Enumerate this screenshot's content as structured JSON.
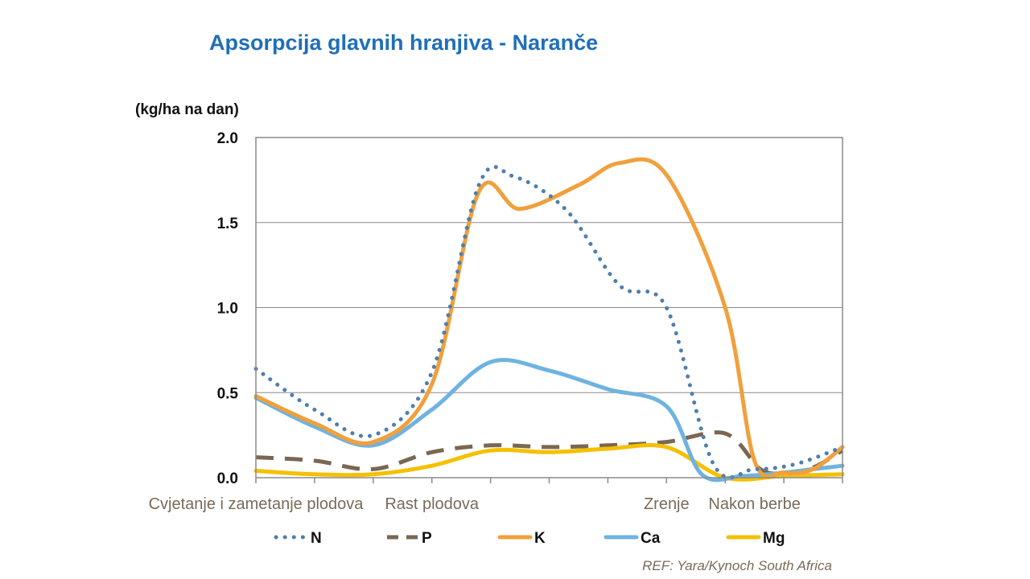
{
  "chart_data": {
    "type": "line",
    "title": "Apsorpcija glavnih hranjiva - Naranče",
    "ylabel": "(kg/ha na dan)",
    "xlabel": "",
    "ylim": [
      0,
      2
    ],
    "yticks": [
      "0.0",
      "0.5",
      "1.0",
      "1.5",
      "2.0"
    ],
    "xlim": [
      0,
      10
    ],
    "categories": [
      {
        "label": "Cvjetanje i zametanje plodova",
        "x": 0
      },
      {
        "label": "Rast plodova",
        "x": 3
      },
      {
        "label": "Zrenje",
        "x": 7
      },
      {
        "label": "Nakon berbe",
        "x": 8.5
      }
    ],
    "grid": true,
    "legend": "bottom",
    "series": [
      {
        "name": "N",
        "color": "#4e7fae",
        "style": "dotted",
        "x": [
          0,
          1,
          2,
          3,
          3.8,
          4.4,
          5.3,
          6.2,
          7,
          7.8,
          8.5,
          9.2,
          10
        ],
        "y": [
          0.64,
          0.4,
          0.25,
          0.62,
          1.72,
          1.77,
          1.57,
          1.13,
          1.0,
          0.08,
          0.05,
          0.08,
          0.18
        ]
      },
      {
        "name": "P",
        "color": "#7a6752",
        "style": "dashed",
        "x": [
          0,
          1,
          2,
          3,
          4,
          5,
          6,
          7,
          8,
          8.6,
          9,
          9.5,
          10
        ],
        "y": [
          0.12,
          0.1,
          0.05,
          0.15,
          0.19,
          0.18,
          0.19,
          0.21,
          0.26,
          0.05,
          0.03,
          0.06,
          0.16
        ]
      },
      {
        "name": "K",
        "color": "#f0a03c",
        "style": "solid",
        "x": [
          0,
          1,
          2,
          3,
          3.8,
          4.5,
          5.5,
          6.2,
          7,
          8,
          8.5,
          9,
          9.5,
          10
        ],
        "y": [
          0.48,
          0.32,
          0.21,
          0.55,
          1.68,
          1.58,
          1.72,
          1.85,
          1.78,
          1.0,
          0.1,
          0.03,
          0.05,
          0.18
        ]
      },
      {
        "name": "Ca",
        "color": "#6fb3e0",
        "style": "solid",
        "x": [
          0,
          1,
          2,
          3,
          4,
          5,
          6,
          7,
          7.6,
          8.3,
          9,
          9.5,
          10
        ],
        "y": [
          0.47,
          0.3,
          0.19,
          0.4,
          0.68,
          0.63,
          0.52,
          0.42,
          0.02,
          0.01,
          0.03,
          0.05,
          0.07
        ]
      },
      {
        "name": "Mg",
        "color": "#f5c000",
        "style": "solid",
        "x": [
          0,
          1,
          2,
          3,
          4,
          5,
          6,
          7,
          8,
          9,
          10
        ],
        "y": [
          0.04,
          0.02,
          0.02,
          0.07,
          0.16,
          0.15,
          0.17,
          0.18,
          0.0,
          0.01,
          0.02
        ]
      }
    ]
  },
  "reference": "REF: Yara/Kynoch South Africa"
}
